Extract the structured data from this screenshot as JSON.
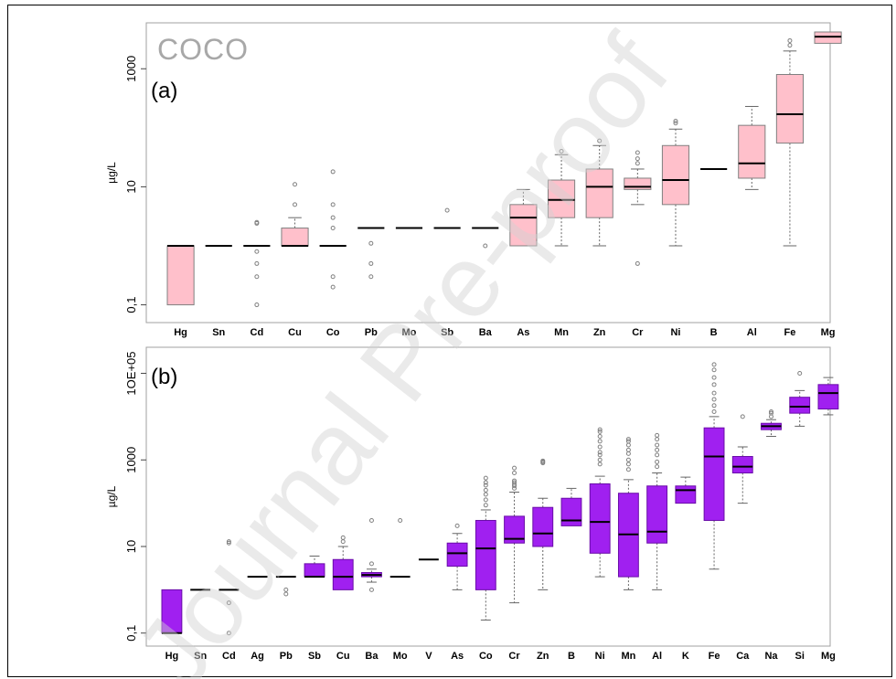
{
  "watermark": "Journal Pre-proof",
  "chart_data": [
    {
      "type": "boxplot",
      "panel_label": "(a)",
      "title": "COCO",
      "ylabel": "µg/L",
      "y_scale": "log10",
      "ylim": [
        0.05,
        6000
      ],
      "y_ticks": [
        0.1,
        10,
        1000
      ],
      "y_tick_labels": [
        "0,1",
        "10",
        "1000"
      ],
      "box_color": "#ffc0cb",
      "box_border_color": "#808080",
      "categories": [
        "Hg",
        "Sn",
        "Cd",
        "Cu",
        "Co",
        "Pb",
        "Mo",
        "Sb",
        "Ba",
        "As",
        "Mn",
        "Zn",
        "Cr",
        "Ni",
        "B",
        "Al",
        "Fe",
        "Mg"
      ],
      "x_tick_labels": [
        "Hg",
        "Sn",
        "Cd",
        "Cu",
        "Co",
        "Pb",
        "Mo",
        "Sb",
        "Ba",
        "As",
        "Mn",
        "Zn",
        "Cr",
        "Ni",
        "B",
        "Al",
        "Fe",
        "Mg"
      ],
      "boxes": [
        {
          "cat": "Hg",
          "q1": 0.1,
          "median": 1,
          "q3": 1,
          "lo": 0.1,
          "hi": 1,
          "out": []
        },
        {
          "cat": "Sn",
          "q1": 1,
          "median": 1,
          "q3": 1,
          "lo": 1,
          "hi": 1,
          "out": []
        },
        {
          "cat": "Cd",
          "q1": 1,
          "median": 1,
          "q3": 1,
          "lo": 1,
          "hi": 1,
          "out": [
            2.5,
            2.4,
            0.8,
            0.5,
            0.3,
            0.1
          ]
        },
        {
          "cat": "Cu",
          "q1": 1,
          "median": 1,
          "q3": 2,
          "lo": 1,
          "hi": 3,
          "out": [
            5,
            11
          ]
        },
        {
          "cat": "Co",
          "q1": 1,
          "median": 1,
          "q3": 1,
          "lo": 1,
          "hi": 1,
          "out": [
            18,
            5,
            3,
            2,
            0.3,
            0.2
          ]
        },
        {
          "cat": "Pb",
          "q1": 2,
          "median": 2,
          "q3": 2,
          "lo": 2,
          "hi": 2,
          "out": [
            1.1,
            0.5,
            0.3
          ]
        },
        {
          "cat": "Mo",
          "q1": 2,
          "median": 2,
          "q3": 2,
          "lo": 2,
          "hi": 2,
          "out": []
        },
        {
          "cat": "Sb",
          "q1": 2,
          "median": 2,
          "q3": 2,
          "lo": 2,
          "hi": 2,
          "out": [
            4
          ]
        },
        {
          "cat": "Ba",
          "q1": 2,
          "median": 2,
          "q3": 2,
          "lo": 2,
          "hi": 2,
          "out": [
            1
          ]
        },
        {
          "cat": "As",
          "q1": 1,
          "median": 3,
          "q3": 5,
          "lo": 1,
          "hi": 9,
          "out": []
        },
        {
          "cat": "Mn",
          "q1": 3,
          "median": 6,
          "q3": 13,
          "lo": 1,
          "hi": 35,
          "out": [
            40
          ]
        },
        {
          "cat": "Zn",
          "q1": 3,
          "median": 10,
          "q3": 20,
          "lo": 1,
          "hi": 50,
          "out": [
            60
          ]
        },
        {
          "cat": "Cr",
          "q1": 9,
          "median": 10,
          "q3": 14,
          "lo": 5,
          "hi": 20,
          "out": [
            25,
            30,
            38,
            0.5
          ]
        },
        {
          "cat": "Ni",
          "q1": 5,
          "median": 13,
          "q3": 50,
          "lo": 1,
          "hi": 95,
          "out": [
            120,
            130
          ]
        },
        {
          "cat": "B",
          "q1": 20,
          "median": 20,
          "q3": 20,
          "lo": 20,
          "hi": 20,
          "out": []
        },
        {
          "cat": "Al",
          "q1": 14,
          "median": 25,
          "q3": 110,
          "lo": 9,
          "hi": 230,
          "out": []
        },
        {
          "cat": "Fe",
          "q1": 55,
          "median": 170,
          "q3": 800,
          "lo": 1,
          "hi": 2000,
          "out": [
            2500,
            3000
          ]
        },
        {
          "cat": "Mg",
          "q1": 2700,
          "median": 3500,
          "q3": 4200,
          "lo": 2700,
          "hi": 4200,
          "out": []
        }
      ]
    },
    {
      "type": "boxplot",
      "panel_label": "(b)",
      "title": "",
      "ylabel": "µg/L",
      "y_scale": "log10",
      "ylim": [
        0.05,
        400000
      ],
      "y_ticks": [
        0.1,
        10,
        1000,
        100000
      ],
      "y_tick_labels": [
        "0,1",
        "10",
        "1000",
        "1OE+05"
      ],
      "box_color": "#a020f0",
      "box_border_color": "#6a0da8",
      "categories": [
        "Hg",
        "Sn",
        "Cd",
        "Ag",
        "Pb",
        "Sb",
        "Cu",
        "Ba",
        "Mo",
        "V",
        "As",
        "Co",
        "Cr",
        "Zn",
        "B",
        "Ni",
        "Mn",
        "Al",
        "K",
        "Fe",
        "Ca",
        "Na",
        "Si",
        "Mg"
      ],
      "x_tick_labels": [
        "Hg",
        "Sn",
        "Cd",
        "Ag",
        "Pb",
        "Sb",
        "Cu",
        "Ba",
        "Mo",
        "V",
        "As",
        "Co",
        "Cr",
        "Zn",
        "B",
        "Ni",
        "Mn",
        "Al",
        "K",
        "Fe",
        "Ca",
        "Na",
        "Si",
        "Mg"
      ],
      "boxes": [
        {
          "cat": "Hg",
          "q1": 0.1,
          "median": 0.1,
          "q3": 1,
          "lo": 0.1,
          "hi": 1,
          "out": []
        },
        {
          "cat": "Sn",
          "q1": 1,
          "median": 1,
          "q3": 1,
          "lo": 1,
          "hi": 1,
          "out": []
        },
        {
          "cat": "Cd",
          "q1": 1,
          "median": 1,
          "q3": 1,
          "lo": 1,
          "hi": 1,
          "out": [
            13,
            12,
            0.5,
            0.5,
            0.1
          ]
        },
        {
          "cat": "Ag",
          "q1": 2,
          "median": 2,
          "q3": 2,
          "lo": 2,
          "hi": 2,
          "out": []
        },
        {
          "cat": "Pb",
          "q1": 2,
          "median": 2,
          "q3": 2,
          "lo": 2,
          "hi": 2,
          "out": [
            1,
            0.8
          ]
        },
        {
          "cat": "Sb",
          "q1": 2,
          "median": 2,
          "q3": 4,
          "lo": 2,
          "hi": 6,
          "out": []
        },
        {
          "cat": "Cu",
          "q1": 1,
          "median": 2,
          "q3": 5,
          "lo": 1,
          "hi": 10,
          "out": [
            13,
            16
          ]
        },
        {
          "cat": "Ba",
          "q1": 2,
          "median": 2.2,
          "q3": 2.5,
          "lo": 1.5,
          "hi": 3,
          "out": [
            1,
            40,
            4
          ]
        },
        {
          "cat": "Mo",
          "q1": 2,
          "median": 2,
          "q3": 2,
          "lo": 2,
          "hi": 2,
          "out": [
            40
          ]
        },
        {
          "cat": "V",
          "q1": 5,
          "median": 5,
          "q3": 5,
          "lo": 5,
          "hi": 5,
          "out": []
        },
        {
          "cat": "As",
          "q1": 3.5,
          "median": 7,
          "q3": 12,
          "lo": 1,
          "hi": 20,
          "out": [
            30
          ]
        },
        {
          "cat": "Co",
          "q1": 1,
          "median": 9,
          "q3": 40,
          "lo": 0.2,
          "hi": 70,
          "out": [
            90,
            120,
            160,
            200,
            260,
            300,
            380
          ]
        },
        {
          "cat": "Cr",
          "q1": 12,
          "median": 15,
          "q3": 50,
          "lo": 0.5,
          "hi": 180,
          "out": [
            220,
            250,
            270,
            300,
            330,
            500,
            650
          ]
        },
        {
          "cat": "Zn",
          "q1": 10,
          "median": 20,
          "q3": 80,
          "lo": 1,
          "hi": 130,
          "out": [
            850,
            900,
            950
          ]
        },
        {
          "cat": "B",
          "q1": 30,
          "median": 40,
          "q3": 130,
          "lo": 30,
          "hi": 220,
          "out": []
        },
        {
          "cat": "Ni",
          "q1": 7,
          "median": 37,
          "q3": 280,
          "lo": 2,
          "hi": 420,
          "out": [
            800,
            1000,
            1300,
            1500,
            2000,
            2700,
            3500,
            4500,
            5000
          ]
        },
        {
          "cat": "Mn",
          "q1": 2,
          "median": 19,
          "q3": 170,
          "lo": 1,
          "hi": 350,
          "out": [
            600,
            800,
            1000,
            1400,
            1700,
            2200,
            2700,
            3000
          ]
        },
        {
          "cat": "Al",
          "q1": 12,
          "median": 22,
          "q3": 250,
          "lo": 1,
          "hi": 500,
          "out": [
            700,
            900,
            1300,
            1700,
            2200,
            3000,
            3700
          ]
        },
        {
          "cat": "K",
          "q1": 100,
          "median": 200,
          "q3": 250,
          "lo": 100,
          "hi": 400,
          "out": []
        },
        {
          "cat": "Fe",
          "q1": 40,
          "median": 1200,
          "q3": 5500,
          "lo": 3,
          "hi": 10000,
          "out": [
            13000,
            18000,
            25000,
            35000,
            55000,
            80000,
            120000,
            160000
          ]
        },
        {
          "cat": "Ca",
          "q1": 500,
          "median": 700,
          "q3": 1200,
          "lo": 100,
          "hi": 2000,
          "out": [
            10000
          ]
        },
        {
          "cat": "Na",
          "q1": 5000,
          "median": 6000,
          "q3": 7000,
          "lo": 3500,
          "hi": 8500,
          "out": [
            10000,
            12000,
            13000
          ]
        },
        {
          "cat": "Si",
          "q1": 12000,
          "median": 17000,
          "q3": 28000,
          "lo": 6000,
          "hi": 40000,
          "out": [
            100000
          ]
        },
        {
          "cat": "Mg",
          "q1": 15000,
          "median": 35000,
          "q3": 55000,
          "lo": 11000,
          "hi": 80000,
          "out": []
        }
      ]
    }
  ]
}
